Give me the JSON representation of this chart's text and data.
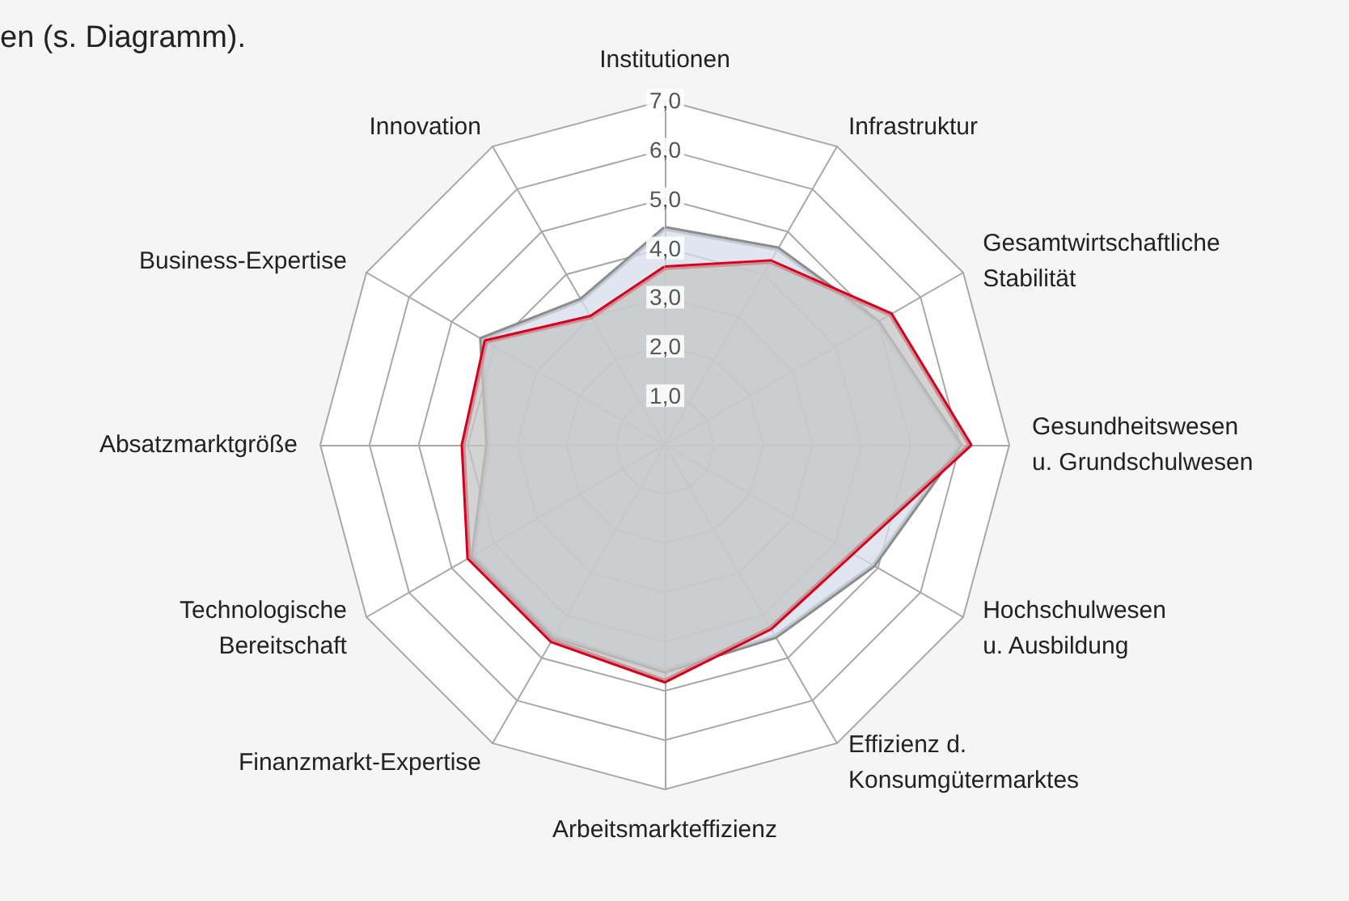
{
  "chart_data": {
    "type": "radar",
    "categories": [
      "Institutionen",
      "Infrastruktur",
      "Gesamtwirtschaftliche Stabilität",
      "Gesundheitswesen u. Grundschulwesen",
      "Hochschulwesen u. Ausbildung",
      "Effizienz d. Konsumgütermarktes",
      "Arbeitsmarkteffizienz",
      "Finanzmarkt-Expertise",
      "Technologische Bereitschaft",
      "Absatzmarktgröße",
      "Business-Expertise",
      "Innovation"
    ],
    "series": [
      {
        "color": "#8c8c8c",
        "values": [
          4.4,
          4.6,
          5.0,
          6.0,
          4.9,
          4.5,
          4.6,
          4.5,
          4.5,
          3.6,
          4.3,
          3.4
        ]
      },
      {
        "color": "#d6001c",
        "values": [
          3.6,
          4.3,
          5.3,
          6.2,
          4.4,
          4.3,
          4.8,
          4.6,
          4.6,
          4.1,
          4.2,
          3.0
        ]
      }
    ],
    "ylim": [
      0,
      7
    ],
    "yticks": [
      {
        "value": 1,
        "label": "1,0"
      },
      {
        "value": 2,
        "label": "2,0"
      },
      {
        "value": 3,
        "label": "3,0"
      },
      {
        "value": 4,
        "label": "4,0"
      },
      {
        "value": 5,
        "label": "5,0"
      },
      {
        "value": 6,
        "label": "6,0"
      },
      {
        "value": 7,
        "label": "7,0"
      }
    ],
    "annotations": [
      "en (s. Diagramm)."
    ]
  }
}
